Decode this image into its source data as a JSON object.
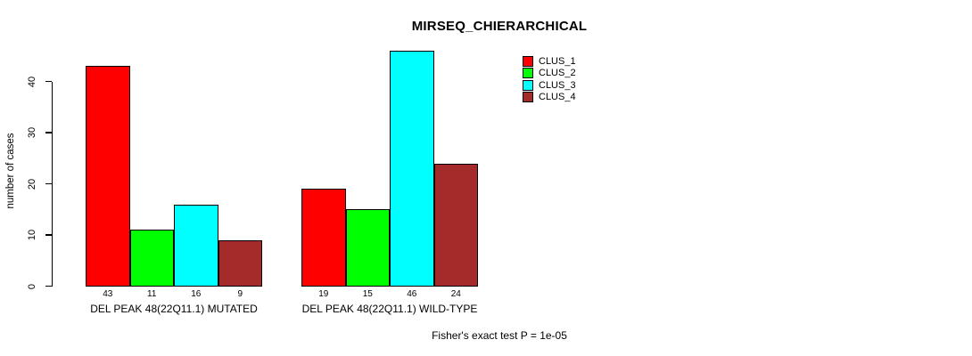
{
  "chart_data": {
    "type": "bar",
    "title": "MIRSEQ_CHIERARCHICAL",
    "ylabel": "number of cases",
    "xlabel": "",
    "ylim": [
      0,
      46
    ],
    "yticks": [
      0,
      10,
      20,
      30,
      40
    ],
    "grid": false,
    "legend_position": "top-right",
    "bar_value_labels": true,
    "categories": [
      "DEL PEAK 48(22Q11.1) MUTATED",
      "DEL PEAK 48(22Q11.1) WILD-TYPE"
    ],
    "series": [
      {
        "name": "CLUS_1",
        "color": "#FF0000",
        "values": [
          43,
          19
        ]
      },
      {
        "name": "CLUS_2",
        "color": "#00FF00",
        "values": [
          11,
          15
        ]
      },
      {
        "name": "CLUS_3",
        "color": "#00FFFF",
        "values": [
          16,
          46
        ]
      },
      {
        "name": "CLUS_4",
        "color": "#A52A2A",
        "values": [
          9,
          24
        ]
      }
    ],
    "annotation": "Fisher's exact test P = 1e-05",
    "axis_color": "#000000"
  }
}
